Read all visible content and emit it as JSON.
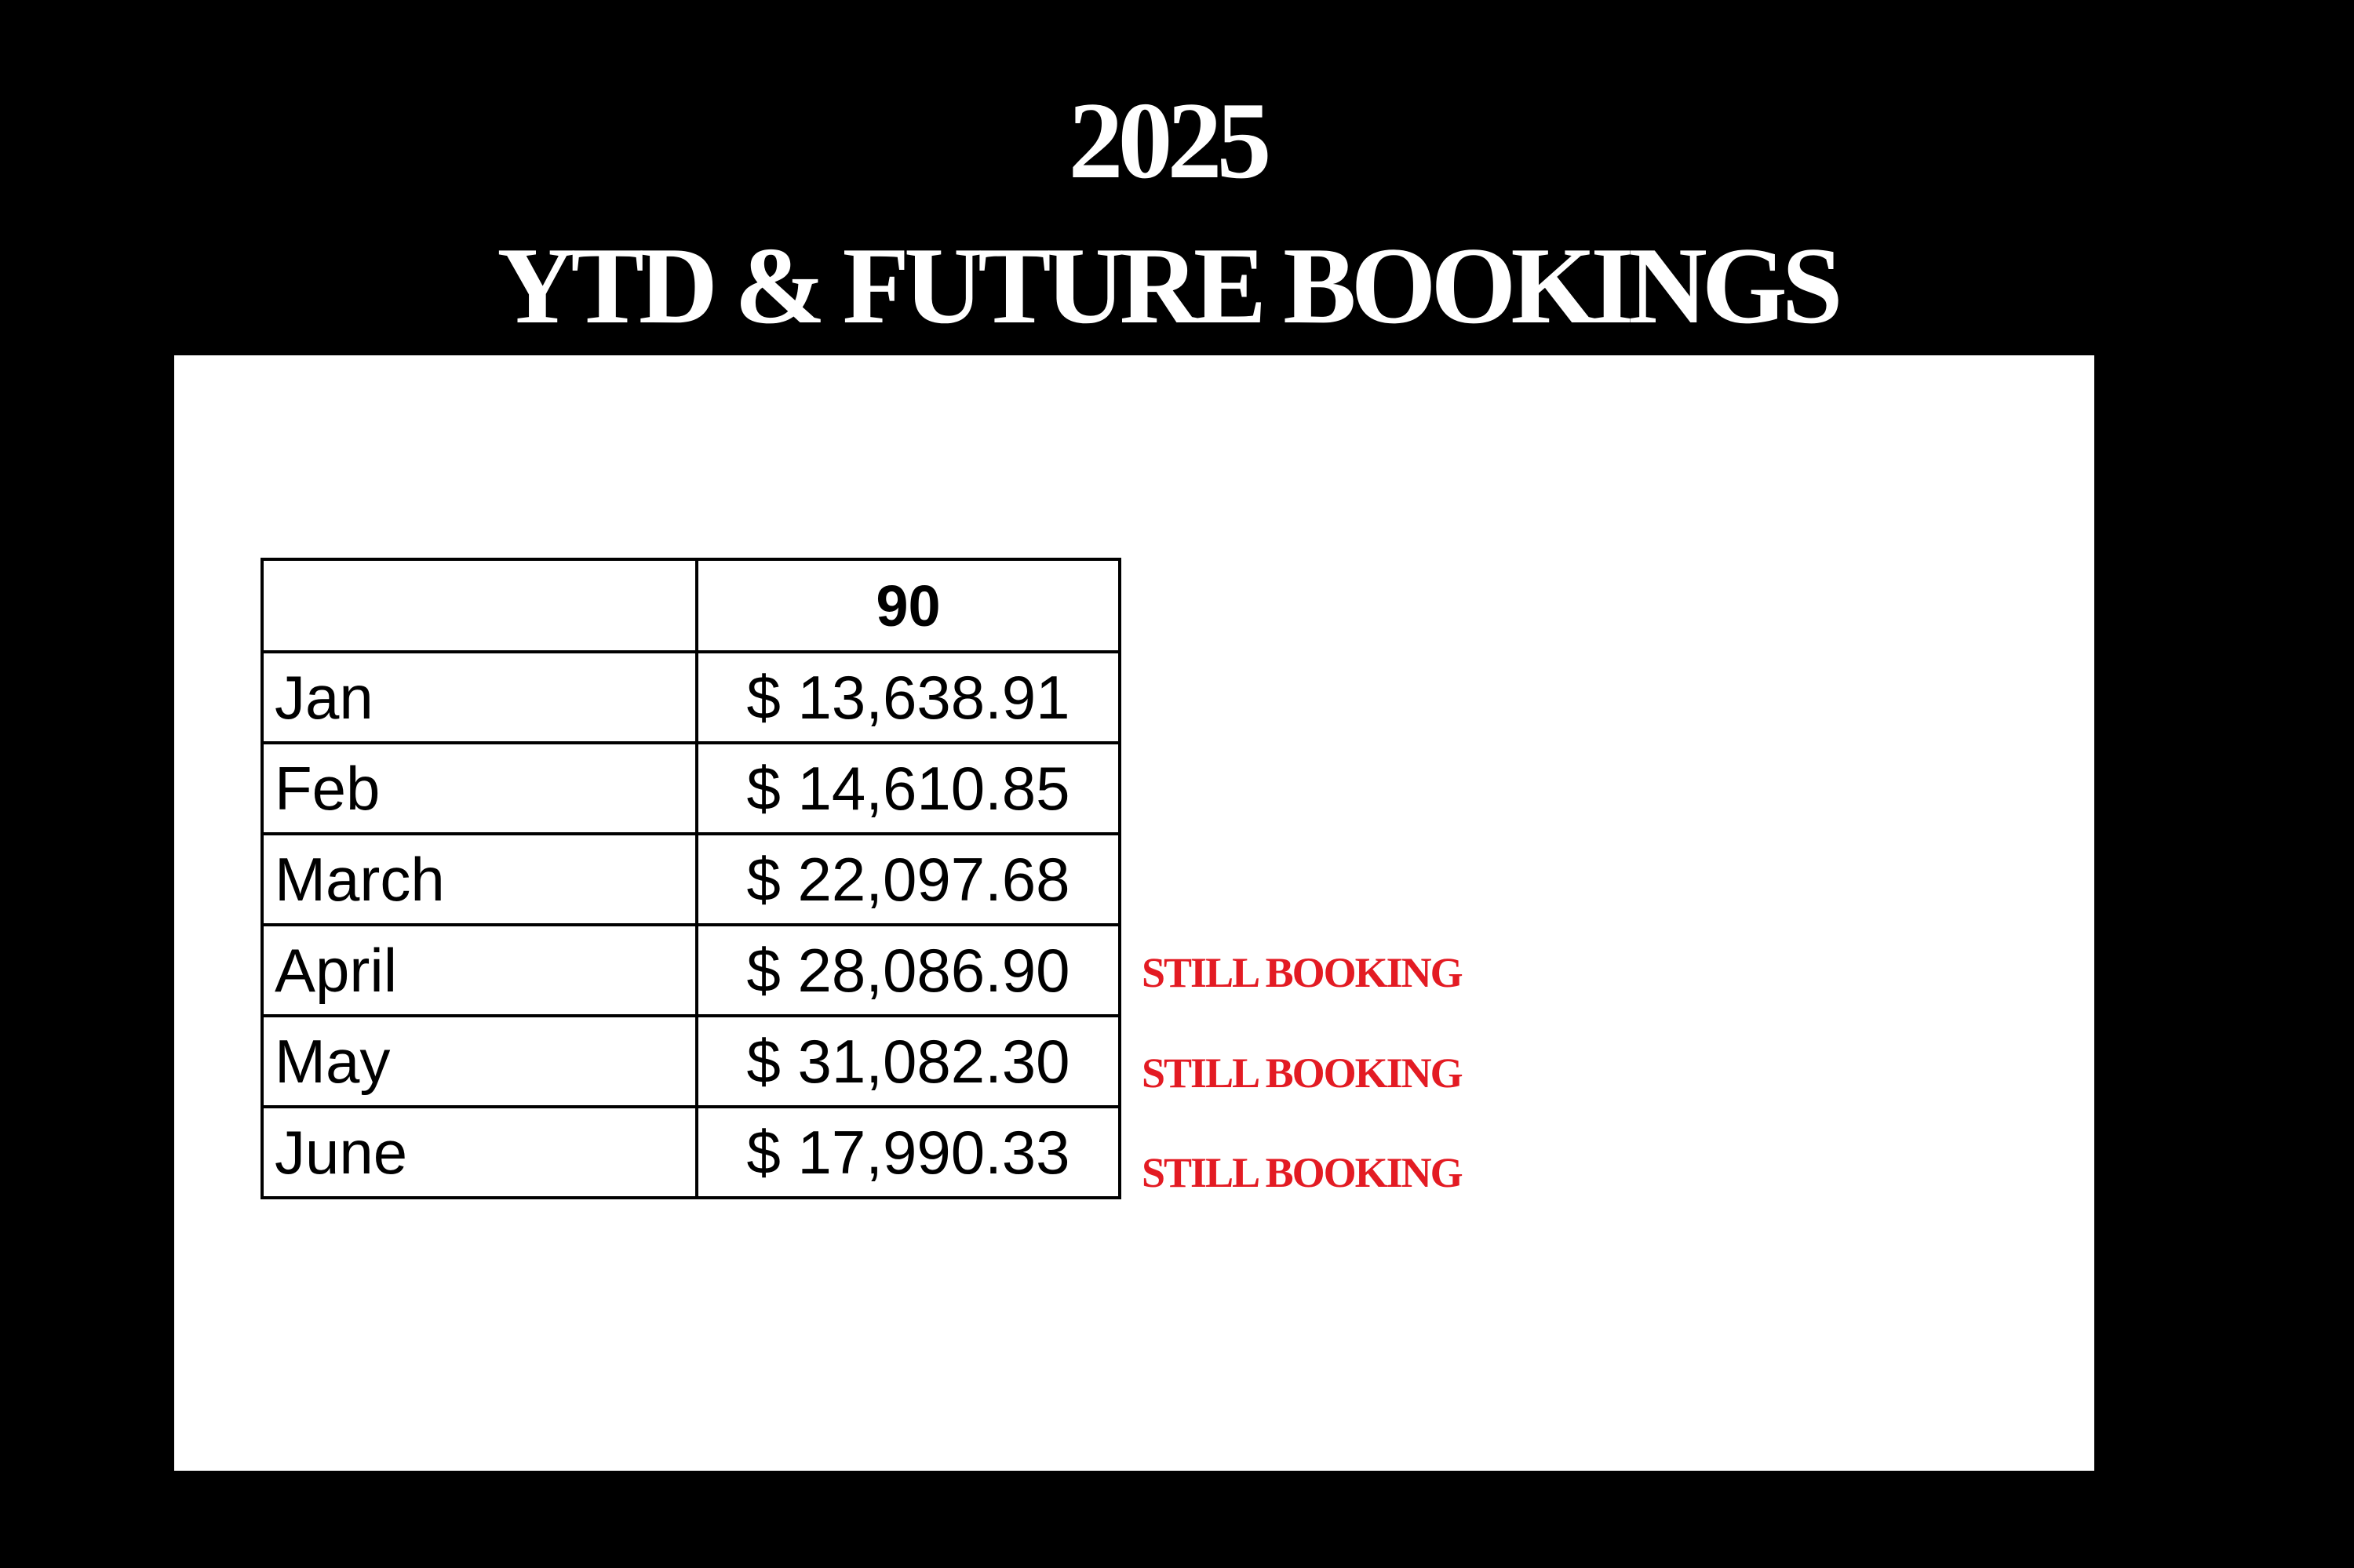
{
  "title": {
    "line1": "2025",
    "line2": "YTD & FUTURE BOOKINGS"
  },
  "table": {
    "header": [
      "",
      "90"
    ],
    "rows": [
      {
        "month": "Jan",
        "amount": "$ 13,638.91",
        "note": ""
      },
      {
        "month": "Feb",
        "amount": "$ 14,610.85",
        "note": ""
      },
      {
        "month": "March",
        "amount": "$ 22,097.68",
        "note": ""
      },
      {
        "month": "April",
        "amount": "$ 28,086.90",
        "note": "STILL BOOKING"
      },
      {
        "month": "May",
        "amount": "$ 31,082.30",
        "note": "STILL BOOKING"
      },
      {
        "month": "June",
        "amount": "$ 17,990.33",
        "note": "STILL BOOKING"
      }
    ]
  },
  "colors": {
    "background": "#000000",
    "panel": "#ffffff",
    "note": "#e31b23"
  }
}
